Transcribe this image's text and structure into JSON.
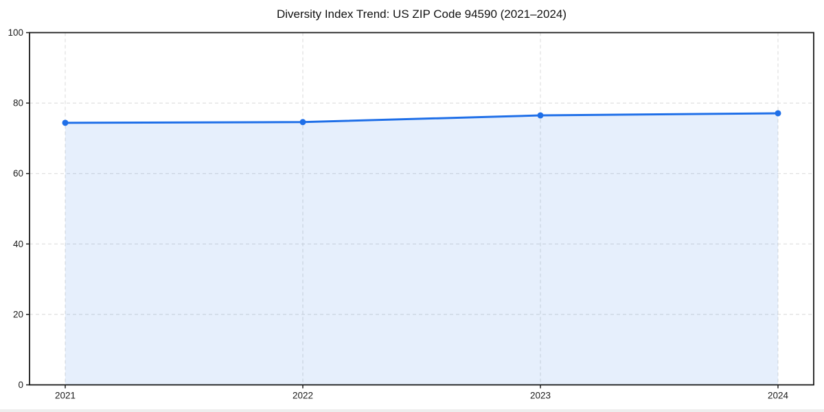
{
  "window": {
    "background": "#ffffff",
    "bottom_edge_color": "#eeeeee"
  },
  "chart_data": {
    "type": "line",
    "title": "Diversity Index Trend: US ZIP Code 94590 (2021–2024)",
    "categories": [
      "2021",
      "2022",
      "2023",
      "2024"
    ],
    "series": [
      {
        "name": "Diversity Index",
        "values": [
          74.4,
          74.6,
          76.5,
          77.1
        ]
      }
    ],
    "xlabel": "",
    "ylabel": "",
    "ylim": [
      0,
      100
    ],
    "y_ticks": [
      0,
      20,
      40,
      60,
      80,
      100
    ],
    "grid": "dashed",
    "legend": "none",
    "marker": "circle",
    "area_fill": true,
    "area_opacity": 0.11,
    "colors": {
      "line": "#1f6fe8",
      "marker": "#1f6fe8",
      "gridline": "#d8d8d8",
      "axis_spine": "#1a1a1a",
      "tick_label": "#1a1a1a",
      "title_text": "#111111"
    }
  }
}
